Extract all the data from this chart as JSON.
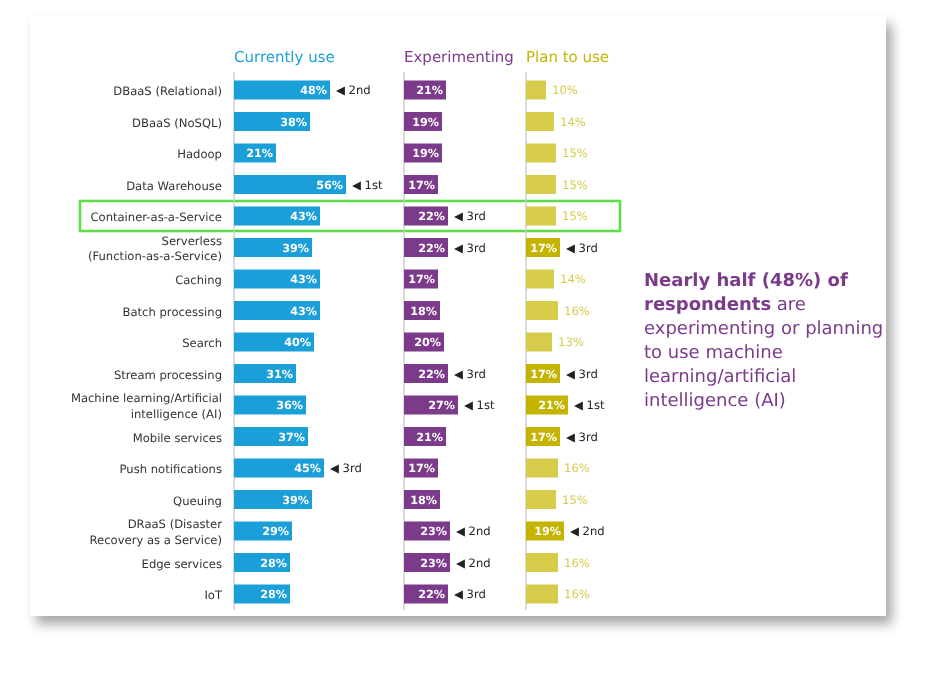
{
  "chart_data": [
    {
      "type": "bar",
      "orientation": "horizontal",
      "title": "Currently use",
      "categories": [
        "DBaaS (Relational)",
        "DBaaS (NoSQL)",
        "Hadoop",
        "Data Warehouse",
        "Container-as-a-Service",
        "Serverless (Function-as-a-Service)",
        "Caching",
        "Batch processing",
        "Search",
        "Stream processing",
        "Machine learning/Artificial intelligence (AI)",
        "Mobile services",
        "Push notifications",
        "Queuing",
        "DRaaS (Disaster Recovery as a Service)",
        "Edge services",
        "IoT"
      ],
      "series": [
        {
          "color": "#1a9fd9",
          "values": [
            48,
            38,
            21,
            56,
            43,
            39,
            43,
            43,
            40,
            31,
            36,
            37,
            45,
            39,
            29,
            28,
            28
          ],
          "value_labels": [
            "48%",
            "38%",
            "21%",
            "56%",
            "43%",
            "39%",
            "43%",
            "43%",
            "40%",
            "31%",
            "36%",
            "37%",
            "45%",
            "39%",
            "29%",
            "28%",
            "28%"
          ]
        }
      ],
      "tick_labels": "y",
      "annotations": [
        {
          "text": "◀ 2nd",
          "x": 48,
          "y": "DBaaS (Relational)"
        },
        {
          "text": "◀ 1st",
          "x": 56,
          "y": "Data Warehouse"
        },
        {
          "text": "◀ 3rd",
          "x": 45,
          "y": "Push notifications"
        }
      ]
    },
    {
      "type": "bar",
      "orientation": "horizontal",
      "title": "Experimenting",
      "categories": [
        "DBaaS (Relational)",
        "DBaaS (NoSQL)",
        "Hadoop",
        "Data Warehouse",
        "Container-as-a-Service",
        "Serverless (Function-as-a-Service)",
        "Caching",
        "Batch processing",
        "Search",
        "Stream processing",
        "Machine learning/Artificial intelligence (AI)",
        "Mobile services",
        "Push notifications",
        "Queuing",
        "DRaaS (Disaster Recovery as a Service)",
        "Edge services",
        "IoT"
      ],
      "series": [
        {
          "color": "#7b3a8a",
          "values": [
            21,
            19,
            19,
            17,
            22,
            22,
            17,
            18,
            20,
            22,
            27,
            21,
            17,
            18,
            23,
            23,
            22
          ],
          "value_labels": [
            "21%",
            "19%",
            "19%",
            "17%",
            "22%",
            "22%",
            "17%",
            "18%",
            "20%",
            "22%",
            "27%",
            "21%",
            "17%",
            "18%",
            "23%",
            "23%",
            "22%"
          ]
        }
      ],
      "tick_labels": false,
      "annotations": [
        {
          "text": "◀ 3rd",
          "x": 22,
          "y": "Container-as-a-Service"
        },
        {
          "text": "◀ 3rd",
          "x": 22,
          "y": "Serverless (Function-as-a-Service)"
        },
        {
          "text": "◀ 3rd",
          "x": 22,
          "y": "Stream processing"
        },
        {
          "text": "◀ 1st",
          "x": 27,
          "y": "Machine learning/Artificial intelligence (AI)"
        },
        {
          "text": "◀ 2nd",
          "x": 23,
          "y": "DRaaS (Disaster Recovery as a Service)"
        },
        {
          "text": "◀ 2nd",
          "x": 23,
          "y": "Edge services"
        },
        {
          "text": "◀ 3rd",
          "x": 22,
          "y": "IoT"
        }
      ]
    },
    {
      "type": "bar",
      "orientation": "horizontal",
      "title": "Plan to use",
      "categories": [
        "DBaaS (Relational)",
        "DBaaS (NoSQL)",
        "Hadoop",
        "Data Warehouse",
        "Container-as-a-Service",
        "Serverless (Function-as-a-Service)",
        "Caching",
        "Batch processing",
        "Search",
        "Stream processing",
        "Machine learning/Artificial intelligence (AI)",
        "Mobile services",
        "Push notifications",
        "Queuing",
        "DRaaS (Disaster Recovery as a Service)",
        "Edge services",
        "IoT"
      ],
      "series": [
        {
          "colors": [
            "#d6cc4a",
            "#d6cc4a",
            "#d6cc4a",
            "#d6cc4a",
            "#d6cc4a",
            "#c4b400",
            "#d6cc4a",
            "#d6cc4a",
            "#d6cc4a",
            "#c4b400",
            "#c4b400",
            "#c4b400",
            "#d6cc4a",
            "#d6cc4a",
            "#c4b400",
            "#d6cc4a",
            "#d6cc4a"
          ],
          "values": [
            10,
            14,
            15,
            15,
            15,
            17,
            14,
            16,
            13,
            17,
            21,
            17,
            16,
            15,
            19,
            16,
            16
          ],
          "value_labels": [
            "10%",
            "14%",
            "15%",
            "15%",
            "15%",
            "17%",
            "14%",
            "16%",
            "13%",
            "17%",
            "21%",
            "17%",
            "16%",
            "15%",
            "19%",
            "16%",
            "16%"
          ]
        }
      ],
      "tick_labels": false,
      "annotations": [
        {
          "text": "◀ 3rd",
          "x": 17,
          "y": "Serverless (Function-as-a-Service)"
        },
        {
          "text": "◀ 3rd",
          "x": 17,
          "y": "Stream processing"
        },
        {
          "text": "◀ 1st",
          "x": 21,
          "y": "Machine learning/Artificial intelligence (AI)"
        },
        {
          "text": "◀ 3rd",
          "x": 17,
          "y": "Mobile services"
        },
        {
          "text": "◀ 2nd",
          "x": 19,
          "y": "DRaaS (Disaster Recovery as a Service)"
        }
      ]
    },
    {
      "type": "other",
      "annotations": [
        "Nearly half (48%) of respondents",
        "are experimenting or planning to use machine learning/artificial intelligence (AI)"
      ]
    }
  ]
}
